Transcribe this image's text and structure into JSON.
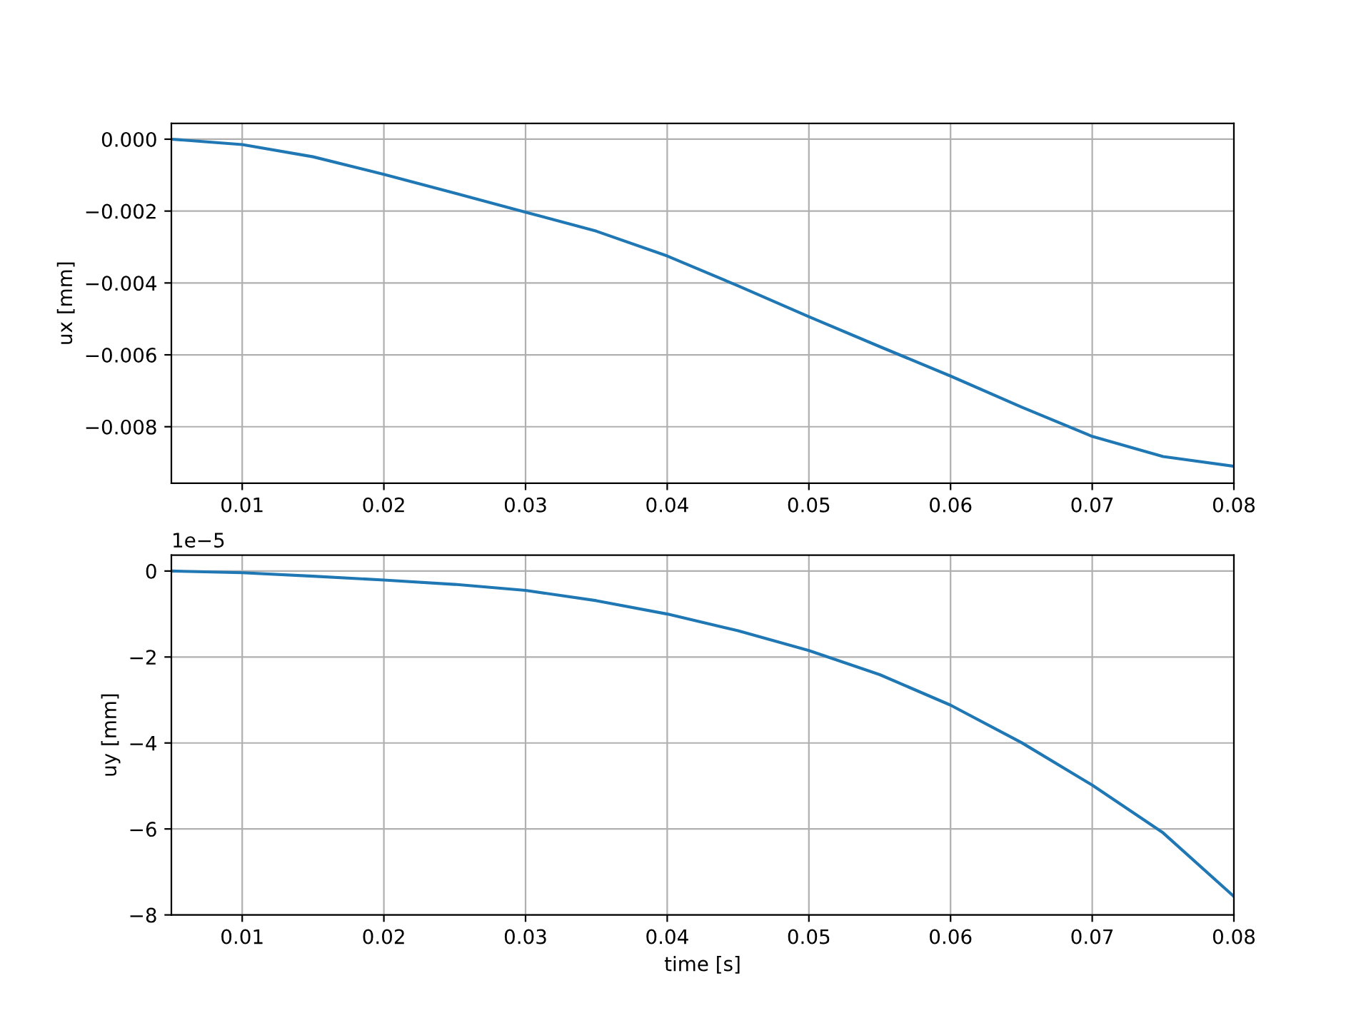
{
  "chart_data": [
    {
      "type": "line",
      "ylabel": "ux [mm]",
      "grid": true,
      "x": [
        0.005,
        0.01,
        0.015,
        0.02,
        0.025,
        0.03,
        0.035,
        0.04,
        0.045,
        0.05,
        0.055,
        0.06,
        0.065,
        0.07,
        0.075,
        0.08
      ],
      "series": [
        {
          "color": "#1f77b4",
          "values": [
            0.0,
            -0.00015,
            -0.00049,
            -0.00098,
            -0.0015,
            -0.00203,
            -0.00256,
            -0.00325,
            -0.00408,
            -0.00494,
            -0.00577,
            -0.00659,
            -0.00745,
            -0.00827,
            -0.00883,
            -0.0091
          ]
        }
      ],
      "xlim": [
        0.005,
        0.08
      ],
      "xticks": [
        0.01,
        0.02,
        0.03,
        0.04,
        0.05,
        0.06,
        0.07,
        0.08
      ],
      "ylim": [
        -0.00957,
        0.00044
      ],
      "yticks": [
        {
          "value": -0.008,
          "label": "−0.008"
        },
        {
          "value": -0.006,
          "label": "−0.006"
        },
        {
          "value": -0.004,
          "label": "−0.004"
        },
        {
          "value": -0.002,
          "label": "−0.002"
        },
        {
          "value": 0.0,
          "label": "0.000"
        }
      ]
    },
    {
      "type": "line",
      "xlabel": "time [s]",
      "ylabel": "uy [mm]",
      "grid": true,
      "annotations": [
        "1e−5"
      ],
      "x": [
        0.005,
        0.01,
        0.015,
        0.02,
        0.025,
        0.03,
        0.035,
        0.04,
        0.045,
        0.05,
        0.055,
        0.06,
        0.065,
        0.07,
        0.075,
        0.08
      ],
      "series": [
        {
          "color": "#1f77b4",
          "values": [
            0.0,
            -0.04,
            -0.12,
            -0.21,
            -0.31,
            -0.45,
            -0.69,
            -1.0,
            -1.39,
            -1.85,
            -2.41,
            -3.12,
            -3.99,
            -4.98,
            -6.09,
            -7.57
          ]
        }
      ],
      "xlim": [
        0.005,
        0.08
      ],
      "xticks": [
        0.01,
        0.02,
        0.03,
        0.04,
        0.05,
        0.06,
        0.07,
        0.08
      ],
      "ylim": [
        -8,
        0.37
      ],
      "yticks": [
        {
          "value": -8,
          "label": "−8"
        },
        {
          "value": -6,
          "label": "−6"
        },
        {
          "value": -4,
          "label": "−4"
        },
        {
          "value": -2,
          "label": "−2"
        },
        0
      ]
    }
  ]
}
